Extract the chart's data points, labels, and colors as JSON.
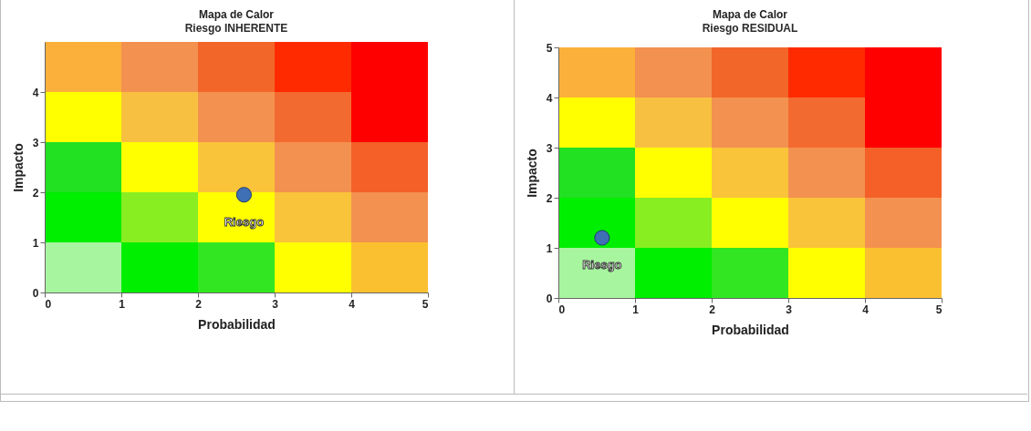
{
  "chart_data": [
    {
      "type": "scatter",
      "title": "Mapa de Calor",
      "subtitle": "Riesgo INHERENTE",
      "xlabel": "Probabilidad",
      "ylabel": "Impacto",
      "x": [
        2.6
      ],
      "values": [
        1.95
      ],
      "color": "#3f6fb5",
      "marker": "circle",
      "xlim": [
        0,
        5
      ],
      "ylim": [
        0,
        5
      ],
      "xticks": [
        0,
        1,
        2,
        3,
        4,
        5
      ],
      "yticks": [
        0,
        1,
        2,
        3,
        4
      ],
      "annotations": [
        {
          "text": "Riesgo",
          "x": 2.6,
          "y": 1.95
        }
      ]
    },
    {
      "type": "scatter",
      "title": "Mapa de Calor",
      "subtitle": "Riesgo RESIDUAL",
      "xlabel": "Probabilidad",
      "ylabel": "Impacto",
      "x": [
        0.57
      ],
      "values": [
        1.2
      ],
      "color": "#3f6fb5",
      "marker": "circle",
      "xlim": [
        0,
        5
      ],
      "ylim": [
        0,
        5
      ],
      "xticks": [
        0,
        1,
        2,
        3,
        4,
        5
      ],
      "yticks": [
        0,
        1,
        2,
        3,
        4,
        5
      ],
      "annotations": [
        {
          "text": "Riesgo",
          "x": 0.57,
          "y": 1.2
        }
      ]
    }
  ]
}
